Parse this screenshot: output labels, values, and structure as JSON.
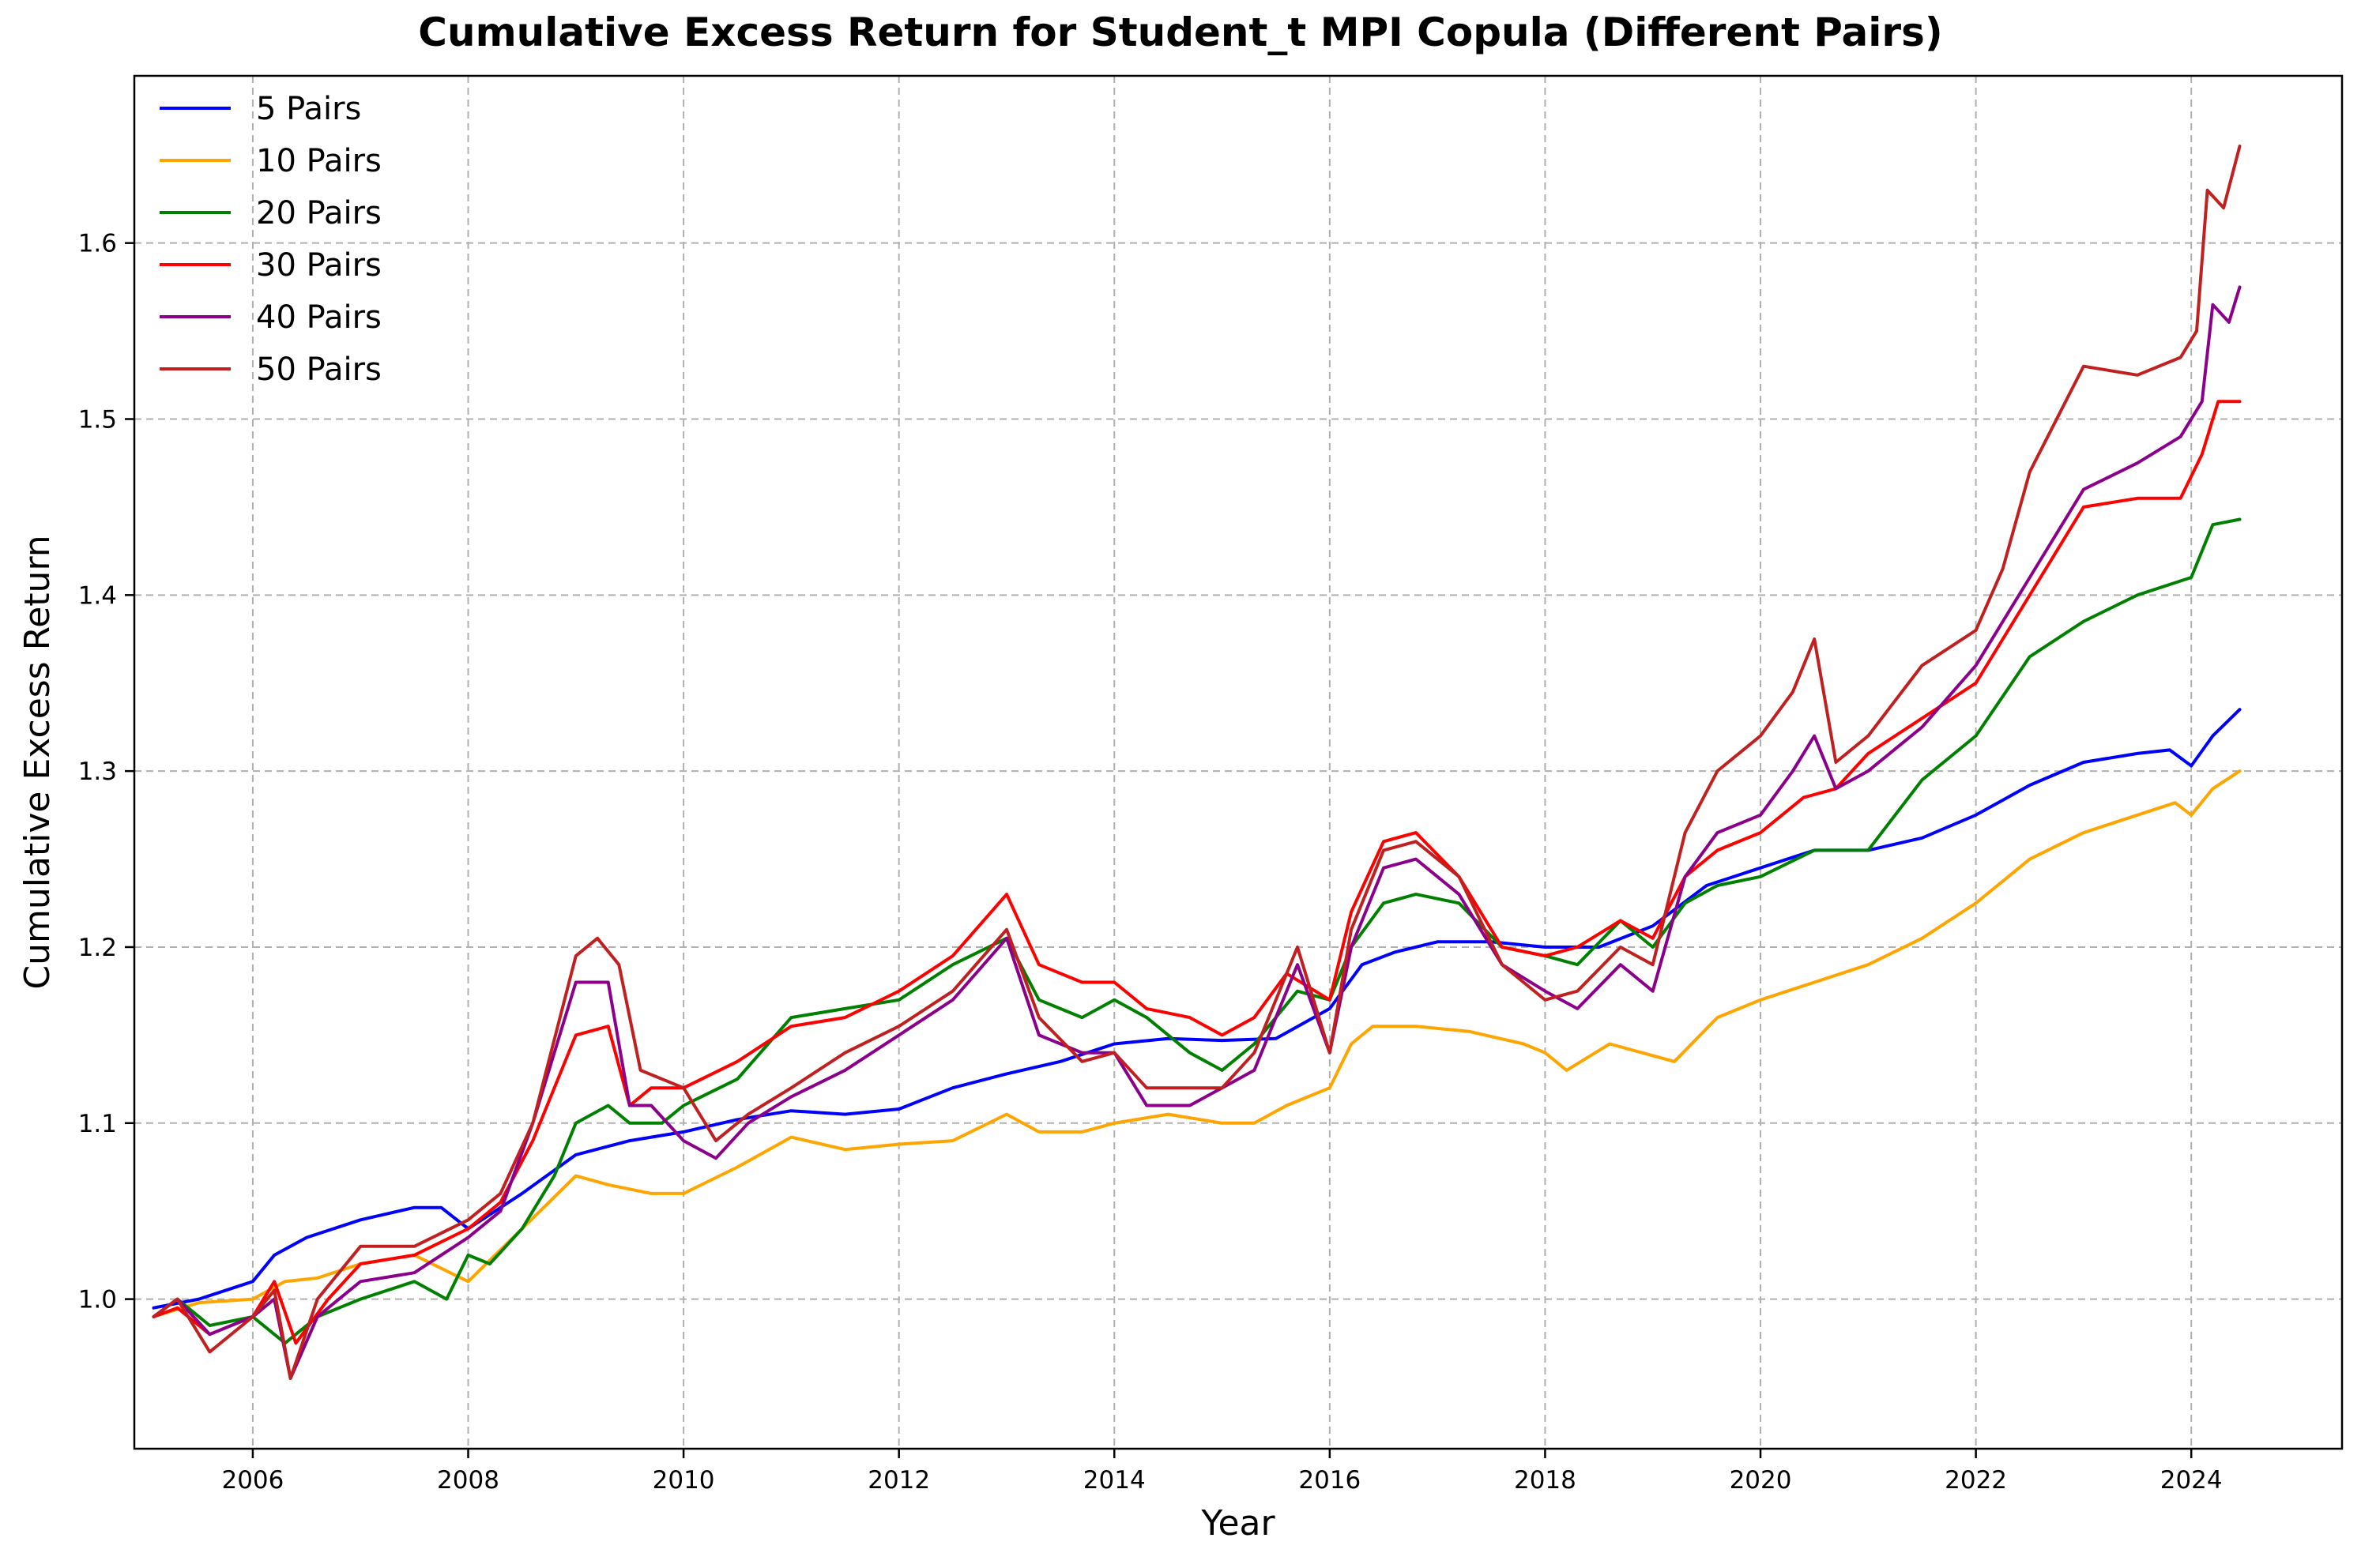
{
  "chart_data": {
    "type": "line",
    "title": "Cumulative Excess Return for Student_t MPI Copula (Different Pairs)",
    "xlabel": "Year",
    "ylabel": "Cumulative Excess Return",
    "xlim": [
      2004.9,
      2025.4
    ],
    "ylim": [
      0.915,
      1.695
    ],
    "xticks": [
      2006,
      2008,
      2010,
      2012,
      2014,
      2016,
      2018,
      2020,
      2022,
      2024
    ],
    "xtick_labels": [
      "2006",
      "2008",
      "2010",
      "2012",
      "2014",
      "2016",
      "2018",
      "2020",
      "2022",
      "2024"
    ],
    "yticks": [
      1.0,
      1.1,
      1.2,
      1.3,
      1.4,
      1.5,
      1.6
    ],
    "ytick_labels": [
      "1.0",
      "1.1",
      "1.2",
      "1.3",
      "1.4",
      "1.5",
      "1.6"
    ],
    "grid": true,
    "legend_position": "upper-left",
    "series": [
      {
        "name": "5 Pairs",
        "color": "#0000ff",
        "x": [
          2005.08,
          2005.5,
          2006.0,
          2006.2,
          2006.5,
          2007.0,
          2007.5,
          2007.75,
          2008.0,
          2008.5,
          2009.0,
          2009.5,
          2010.0,
          2010.5,
          2011.0,
          2011.5,
          2012.0,
          2012.5,
          2013.0,
          2013.5,
          2014.0,
          2014.5,
          2015.0,
          2015.5,
          2016.0,
          2016.3,
          2016.6,
          2017.0,
          2017.5,
          2018.0,
          2018.5,
          2019.0,
          2019.5,
          2020.0,
          2020.5,
          2021.0,
          2021.5,
          2022.0,
          2022.5,
          2023.0,
          2023.5,
          2023.8,
          2024.0,
          2024.2,
          2024.45
        ],
        "values": [
          0.995,
          1.0,
          1.01,
          1.025,
          1.035,
          1.045,
          1.052,
          1.052,
          1.04,
          1.06,
          1.082,
          1.09,
          1.095,
          1.102,
          1.107,
          1.105,
          1.108,
          1.12,
          1.128,
          1.135,
          1.145,
          1.148,
          1.147,
          1.148,
          1.165,
          1.19,
          1.197,
          1.203,
          1.203,
          1.2,
          1.2,
          1.212,
          1.235,
          1.245,
          1.255,
          1.255,
          1.262,
          1.275,
          1.292,
          1.305,
          1.31,
          1.312,
          1.303,
          1.32,
          1.335
        ]
      },
      {
        "name": "10 Pairs",
        "color": "#ffa500",
        "x": [
          2005.08,
          2005.5,
          2006.0,
          2006.3,
          2006.6,
          2007.0,
          2007.5,
          2008.0,
          2008.5,
          2009.0,
          2009.3,
          2009.7,
          2010.0,
          2010.5,
          2011.0,
          2011.5,
          2012.0,
          2012.5,
          2013.0,
          2013.3,
          2013.7,
          2014.0,
          2014.5,
          2015.0,
          2015.3,
          2015.6,
          2016.0,
          2016.2,
          2016.4,
          2016.8,
          2017.3,
          2017.8,
          2018.0,
          2018.2,
          2018.6,
          2018.9,
          2019.2,
          2019.6,
          2020.0,
          2020.5,
          2021.0,
          2021.5,
          2022.0,
          2022.5,
          2023.0,
          2023.5,
          2023.85,
          2024.0,
          2024.2,
          2024.45
        ],
        "values": [
          0.99,
          0.998,
          1.0,
          1.01,
          1.012,
          1.02,
          1.025,
          1.01,
          1.04,
          1.07,
          1.065,
          1.06,
          1.06,
          1.075,
          1.092,
          1.085,
          1.088,
          1.09,
          1.105,
          1.095,
          1.095,
          1.1,
          1.105,
          1.1,
          1.1,
          1.11,
          1.12,
          1.145,
          1.155,
          1.155,
          1.152,
          1.145,
          1.14,
          1.13,
          1.145,
          1.14,
          1.135,
          1.16,
          1.17,
          1.18,
          1.19,
          1.205,
          1.225,
          1.25,
          1.265,
          1.275,
          1.282,
          1.275,
          1.29,
          1.3
        ]
      },
      {
        "name": "20 Pairs",
        "color": "#008000",
        "x": [
          2005.08,
          2005.3,
          2005.6,
          2006.0,
          2006.3,
          2006.6,
          2007.0,
          2007.5,
          2007.8,
          2008.0,
          2008.2,
          2008.5,
          2008.8,
          2009.0,
          2009.3,
          2009.5,
          2009.8,
          2010.0,
          2010.5,
          2011.0,
          2011.5,
          2012.0,
          2012.5,
          2013.0,
          2013.3,
          2013.7,
          2014.0,
          2014.3,
          2014.7,
          2015.0,
          2015.3,
          2015.7,
          2016.0,
          2016.2,
          2016.5,
          2016.8,
          2017.2,
          2017.6,
          2018.0,
          2018.3,
          2018.7,
          2019.0,
          2019.3,
          2019.6,
          2020.0,
          2020.5,
          2021.0,
          2021.5,
          2022.0,
          2022.5,
          2023.0,
          2023.5,
          2024.0,
          2024.2,
          2024.45
        ],
        "values": [
          0.99,
          1.0,
          0.985,
          0.99,
          0.975,
          0.99,
          1.0,
          1.01,
          1.0,
          1.025,
          1.02,
          1.04,
          1.07,
          1.1,
          1.11,
          1.1,
          1.1,
          1.11,
          1.125,
          1.16,
          1.165,
          1.17,
          1.19,
          1.205,
          1.17,
          1.16,
          1.17,
          1.16,
          1.14,
          1.13,
          1.145,
          1.175,
          1.17,
          1.2,
          1.225,
          1.23,
          1.225,
          1.2,
          1.195,
          1.19,
          1.215,
          1.2,
          1.225,
          1.235,
          1.24,
          1.255,
          1.255,
          1.295,
          1.32,
          1.365,
          1.385,
          1.4,
          1.41,
          1.44,
          1.443
        ]
      },
      {
        "name": "30 Pairs",
        "color": "#ff0000",
        "x": [
          2005.08,
          2005.3,
          2005.6,
          2006.0,
          2006.2,
          2006.4,
          2006.7,
          2007.0,
          2007.5,
          2008.0,
          2008.3,
          2008.6,
          2009.0,
          2009.3,
          2009.5,
          2009.7,
          2010.0,
          2010.5,
          2011.0,
          2011.5,
          2012.0,
          2012.5,
          2013.0,
          2013.3,
          2013.7,
          2014.0,
          2014.3,
          2014.7,
          2015.0,
          2015.3,
          2015.6,
          2016.0,
          2016.2,
          2016.5,
          2016.8,
          2017.2,
          2017.6,
          2018.0,
          2018.3,
          2018.7,
          2019.0,
          2019.3,
          2019.6,
          2020.0,
          2020.4,
          2020.7,
          2021.0,
          2021.5,
          2022.0,
          2022.3,
          2022.7,
          2023.0,
          2023.5,
          2023.9,
          2024.1,
          2024.25,
          2024.45
        ],
        "values": [
          0.99,
          0.995,
          0.98,
          0.99,
          1.01,
          0.975,
          1.0,
          1.02,
          1.025,
          1.04,
          1.055,
          1.09,
          1.15,
          1.155,
          1.11,
          1.12,
          1.12,
          1.135,
          1.155,
          1.16,
          1.175,
          1.195,
          1.23,
          1.19,
          1.18,
          1.18,
          1.165,
          1.16,
          1.15,
          1.16,
          1.185,
          1.17,
          1.22,
          1.26,
          1.265,
          1.24,
          1.2,
          1.195,
          1.2,
          1.215,
          1.205,
          1.24,
          1.255,
          1.265,
          1.285,
          1.29,
          1.31,
          1.33,
          1.35,
          1.38,
          1.42,
          1.45,
          1.455,
          1.455,
          1.48,
          1.51,
          1.51
        ]
      },
      {
        "name": "40 Pairs",
        "color": "#8b008b",
        "x": [
          2005.08,
          2005.3,
          2005.6,
          2006.0,
          2006.2,
          2006.35,
          2006.6,
          2007.0,
          2007.5,
          2008.0,
          2008.3,
          2008.6,
          2009.0,
          2009.3,
          2009.5,
          2009.7,
          2010.0,
          2010.3,
          2010.6,
          2011.0,
          2011.5,
          2012.0,
          2012.5,
          2013.0,
          2013.3,
          2013.7,
          2014.0,
          2014.3,
          2014.7,
          2015.0,
          2015.3,
          2015.7,
          2016.0,
          2016.2,
          2016.5,
          2016.8,
          2017.2,
          2017.6,
          2018.0,
          2018.3,
          2018.7,
          2019.0,
          2019.3,
          2019.6,
          2020.0,
          2020.3,
          2020.5,
          2020.7,
          2021.0,
          2021.5,
          2022.0,
          2022.2,
          2022.5,
          2023.0,
          2023.5,
          2023.9,
          2024.1,
          2024.2,
          2024.35,
          2024.45
        ],
        "values": [
          0.99,
          1.0,
          0.98,
          0.99,
          1.0,
          0.955,
          0.99,
          1.01,
          1.015,
          1.035,
          1.05,
          1.1,
          1.18,
          1.18,
          1.11,
          1.11,
          1.09,
          1.08,
          1.1,
          1.115,
          1.13,
          1.15,
          1.17,
          1.205,
          1.15,
          1.14,
          1.14,
          1.11,
          1.11,
          1.12,
          1.13,
          1.19,
          1.14,
          1.2,
          1.245,
          1.25,
          1.23,
          1.19,
          1.175,
          1.165,
          1.19,
          1.175,
          1.24,
          1.265,
          1.275,
          1.3,
          1.32,
          1.29,
          1.3,
          1.325,
          1.36,
          1.38,
          1.41,
          1.46,
          1.475,
          1.49,
          1.51,
          1.565,
          1.555,
          1.575
        ]
      },
      {
        "name": "50 Pairs",
        "color": "#c02020",
        "x": [
          2005.08,
          2005.3,
          2005.6,
          2006.0,
          2006.2,
          2006.35,
          2006.6,
          2007.0,
          2007.5,
          2008.0,
          2008.3,
          2008.6,
          2009.0,
          2009.2,
          2009.4,
          2009.6,
          2010.0,
          2010.3,
          2010.6,
          2011.0,
          2011.5,
          2012.0,
          2012.5,
          2013.0,
          2013.3,
          2013.7,
          2014.0,
          2014.3,
          2014.7,
          2015.0,
          2015.3,
          2015.7,
          2016.0,
          2016.2,
          2016.5,
          2016.8,
          2017.2,
          2017.6,
          2018.0,
          2018.3,
          2018.7,
          2019.0,
          2019.3,
          2019.6,
          2020.0,
          2020.3,
          2020.5,
          2020.7,
          2021.0,
          2021.5,
          2022.0,
          2022.25,
          2022.5,
          2023.0,
          2023.5,
          2023.9,
          2024.05,
          2024.15,
          2024.3,
          2024.45
        ],
        "values": [
          0.99,
          1.0,
          0.97,
          0.99,
          1.005,
          0.955,
          1.0,
          1.03,
          1.03,
          1.045,
          1.06,
          1.1,
          1.195,
          1.205,
          1.19,
          1.13,
          1.12,
          1.09,
          1.105,
          1.12,
          1.14,
          1.155,
          1.175,
          1.21,
          1.16,
          1.135,
          1.14,
          1.12,
          1.12,
          1.12,
          1.14,
          1.2,
          1.14,
          1.21,
          1.255,
          1.26,
          1.24,
          1.19,
          1.17,
          1.175,
          1.2,
          1.19,
          1.265,
          1.3,
          1.32,
          1.345,
          1.375,
          1.305,
          1.32,
          1.36,
          1.38,
          1.415,
          1.47,
          1.53,
          1.525,
          1.535,
          1.55,
          1.63,
          1.62,
          1.655
        ]
      }
    ]
  }
}
